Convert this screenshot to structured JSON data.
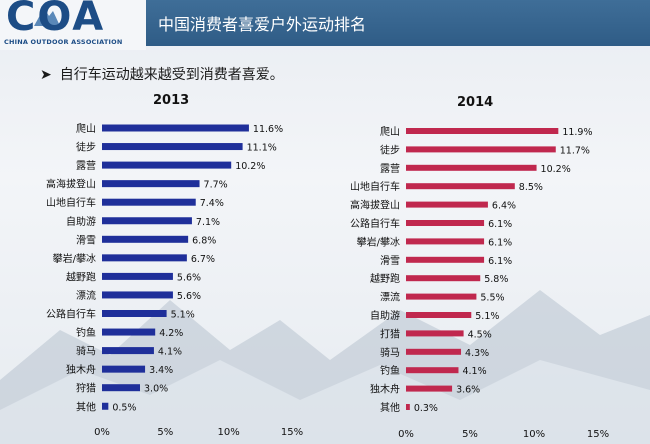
{
  "header": {
    "logo_text": "COA",
    "logo_sub": "CHINA OUTDOOR ASSOCIATION",
    "title": "中国消费者喜爱户外运动排名"
  },
  "subtitle": "自行车运动越来越受到消费者喜爱。",
  "colors": {
    "header": "#2f5c86",
    "bar2013": "#1f2f9a",
    "bar2014": "#c0284e"
  },
  "chart_data": [
    {
      "type": "bar",
      "orientation": "horizontal",
      "title": "2013",
      "categories": [
        "爬山",
        "徒步",
        "露营",
        "高海拔登山",
        "山地自行车",
        "自助游",
        "滑雪",
        "攀岩/攀冰",
        "越野跑",
        "漂流",
        "公路自行车",
        "钓鱼",
        "骑马",
        "独木舟",
        "狩猎",
        "其他"
      ],
      "values": [
        11.6,
        11.1,
        10.2,
        7.7,
        7.4,
        7.1,
        6.8,
        6.7,
        5.6,
        5.6,
        5.1,
        4.2,
        4.1,
        3.4,
        3.0,
        0.5
      ],
      "labels": [
        "11.6%",
        "11.1%",
        "10.2%",
        "7.7%",
        "7.4%",
        "7.1%",
        "6.8%",
        "6.7%",
        "5.6%",
        "5.6%",
        "5.1%",
        "4.2%",
        "4.1%",
        "3.4%",
        "3.0%",
        "0.5%"
      ],
      "xlim": [
        0,
        15
      ],
      "xticks": [
        "0%",
        "5%",
        "10%",
        "15%"
      ],
      "color": "#1f2f9a"
    },
    {
      "type": "bar",
      "orientation": "horizontal",
      "title": "2014",
      "categories": [
        "爬山",
        "徒步",
        "露营",
        "山地自行车",
        "高海拔登山",
        "公路自行车",
        "攀岩/攀冰",
        "滑雪",
        "越野跑",
        "漂流",
        "自助游",
        "打猎",
        "骑马",
        "钓鱼",
        "独木舟",
        "其他"
      ],
      "values": [
        11.9,
        11.7,
        10.2,
        8.5,
        6.4,
        6.1,
        6.1,
        6.1,
        5.8,
        5.5,
        5.1,
        4.5,
        4.3,
        4.1,
        3.6,
        0.3
      ],
      "labels": [
        "11.9%",
        "11.7%",
        "10.2%",
        "8.5%",
        "6.4%",
        "6.1%",
        "6.1%",
        "6.1%",
        "5.8%",
        "5.5%",
        "5.1%",
        "4.5%",
        "4.3%",
        "4.1%",
        "3.6%",
        "0.3%"
      ],
      "xlim": [
        0,
        15
      ],
      "xticks": [
        "0%",
        "5%",
        "10%",
        "15%"
      ],
      "color": "#c0284e"
    }
  ]
}
